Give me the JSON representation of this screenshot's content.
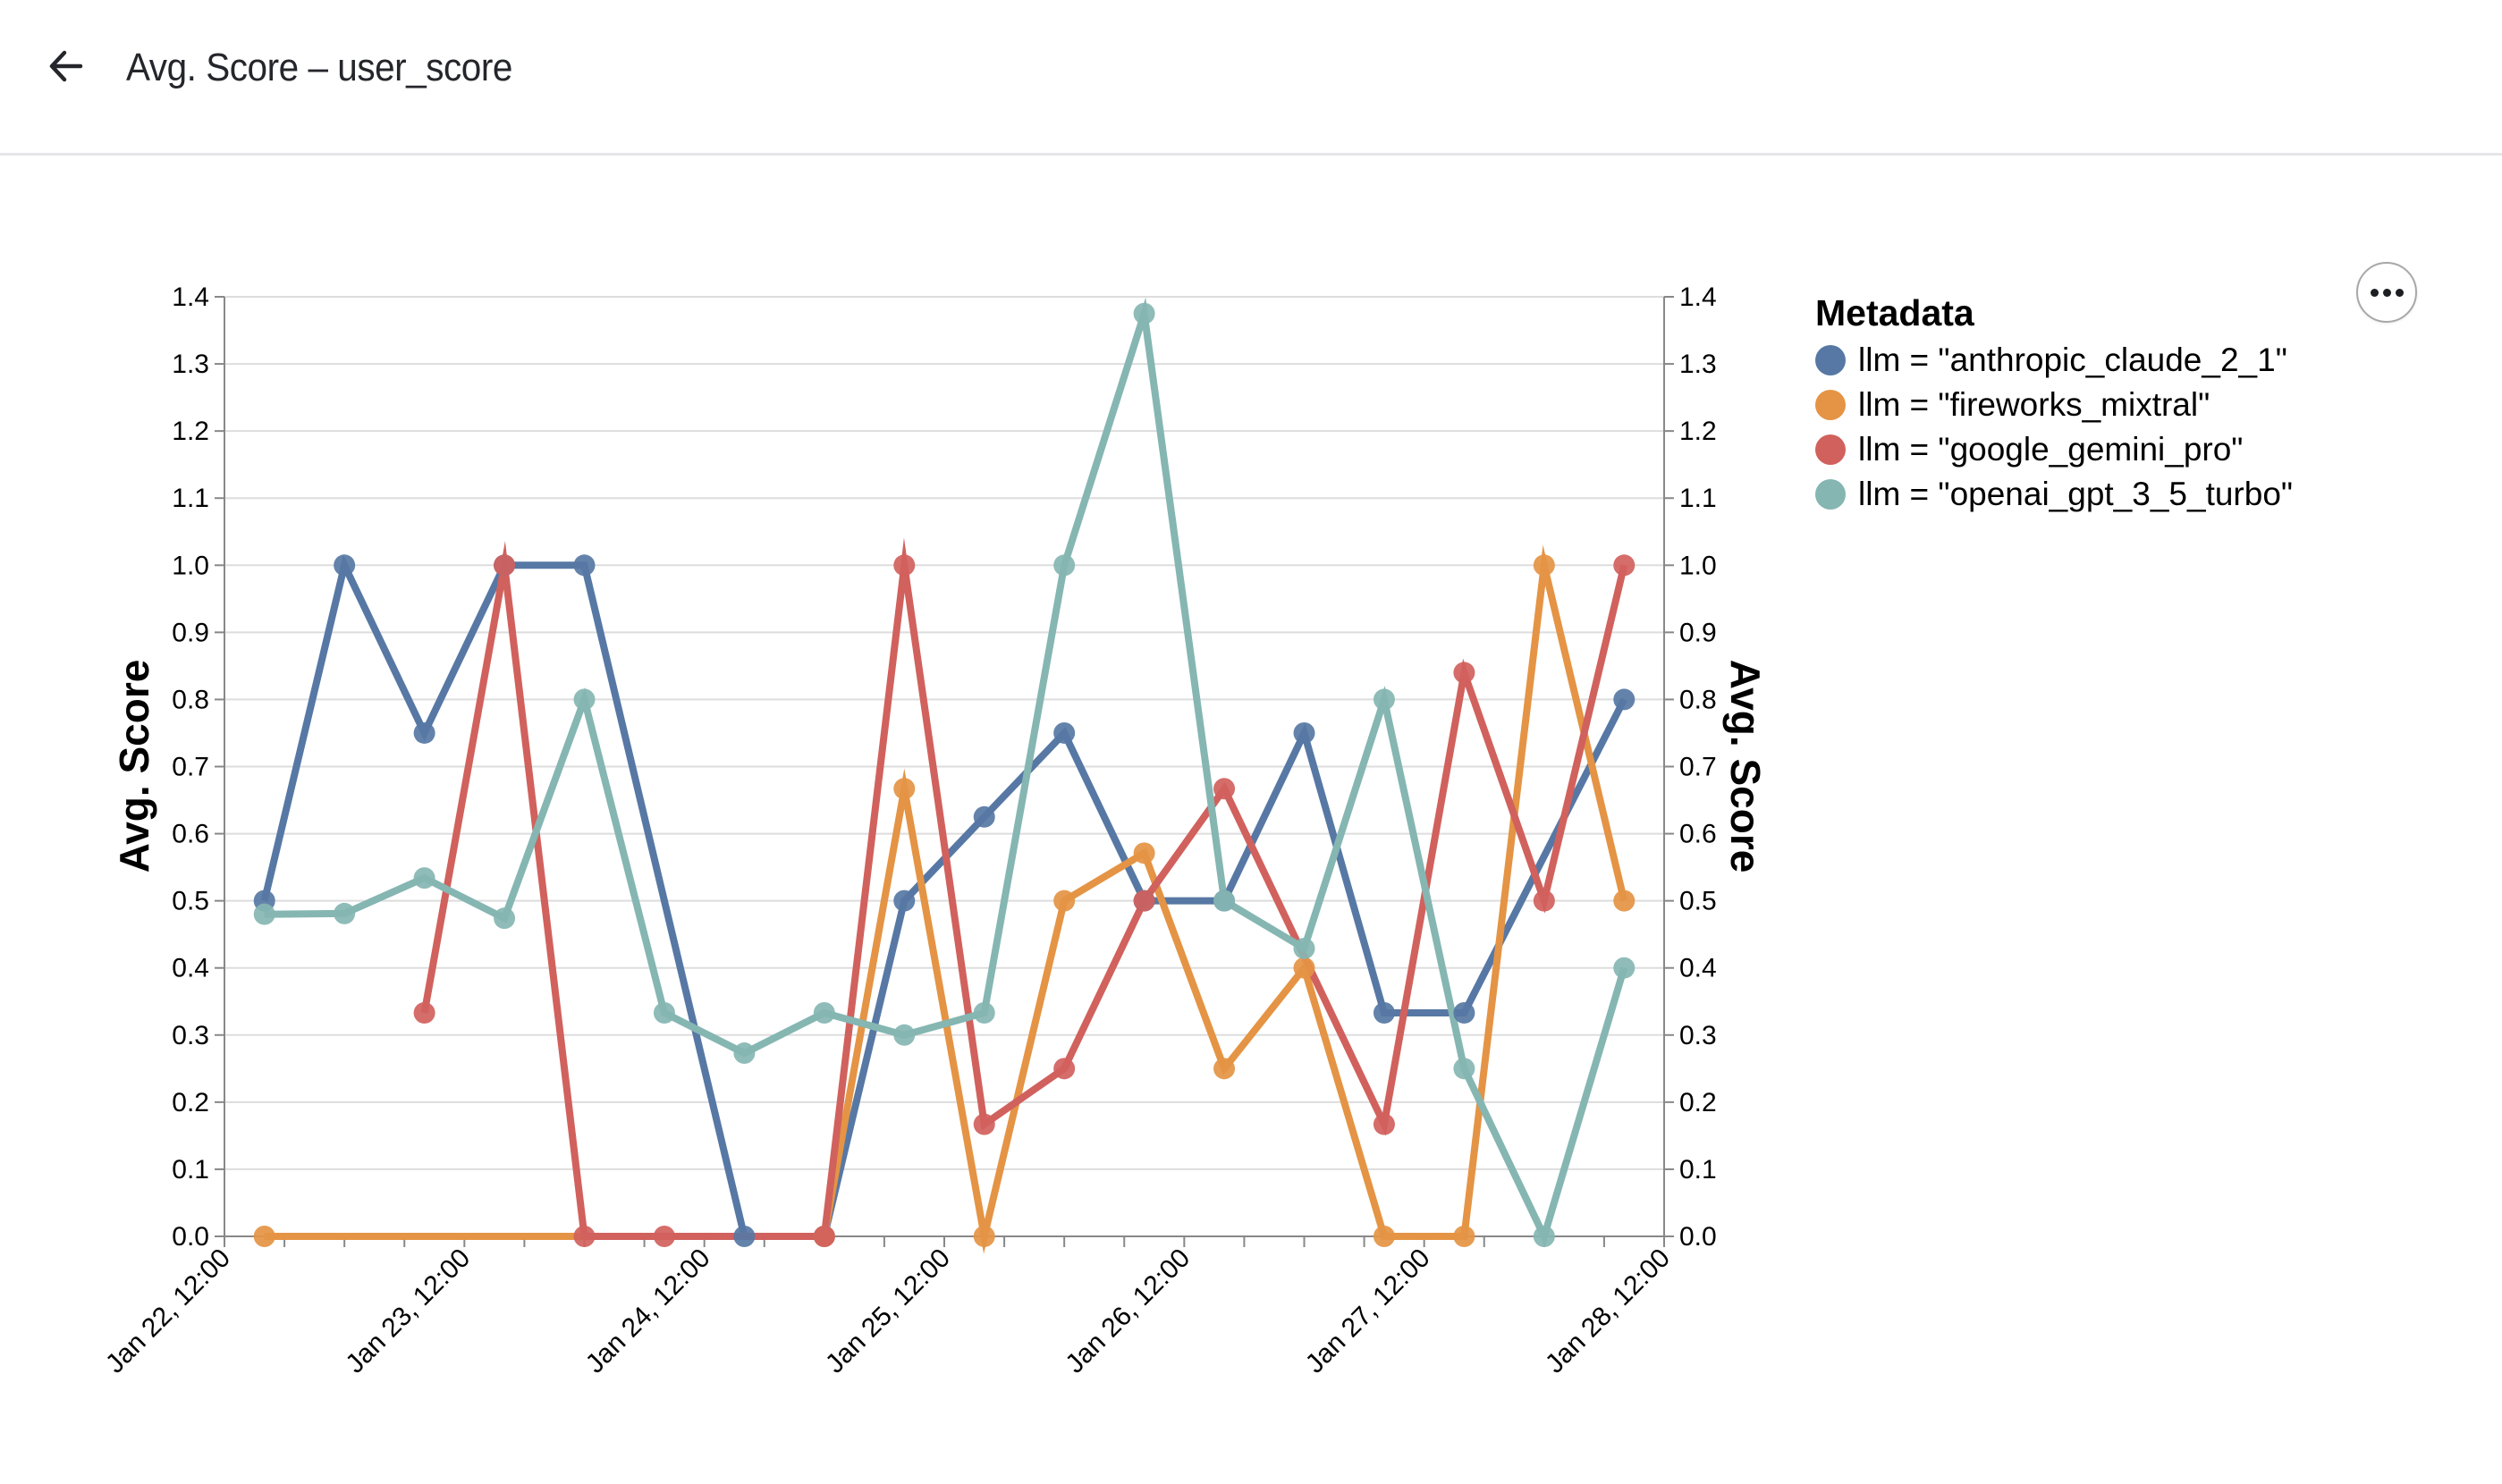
{
  "header": {
    "title": "Avg. Score – user_score",
    "back_icon": "arrow-left-icon"
  },
  "menu": {
    "icon": "more-horizontal-icon"
  },
  "legend": {
    "title": "Metadata",
    "items": [
      {
        "label": "llm = \"anthropic_claude_2_1\"",
        "color": "#5778a4"
      },
      {
        "label": "llm = \"fireworks_mixtral\"",
        "color": "#e49444"
      },
      {
        "label": "llm = \"google_gemini_pro\"",
        "color": "#d1615d"
      },
      {
        "label": "llm = \"openai_gpt_3_5_turbo\"",
        "color": "#85b6b2"
      }
    ]
  },
  "chart_data": {
    "type": "line",
    "title": "",
    "xlabel": "",
    "ylabel": "Avg. Score",
    "ylabel_right": "Avg. Score",
    "ylim": [
      0,
      1.4
    ],
    "yticks": [
      "0.0",
      "0.1",
      "0.2",
      "0.3",
      "0.4",
      "0.5",
      "0.6",
      "0.7",
      "0.8",
      "0.9",
      "1.0",
      "1.1",
      "1.2",
      "1.3",
      "1.4"
    ],
    "xlim_hours_from_jan22_12": [
      0,
      144
    ],
    "xticks": [
      "Jan 22, 12:00",
      "Jan 23, 12:00",
      "Jan 24, 12:00",
      "Jan 25, 12:00",
      "Jan 26, 12:00",
      "Jan 27, 12:00",
      "Jan 28, 12:00"
    ],
    "x": [
      "Jan 22 16:00",
      "Jan 23 00:00",
      "Jan 23 08:00",
      "Jan 23 16:00",
      "Jan 24 00:00",
      "Jan 24 08:00",
      "Jan 24 16:00",
      "Jan 25 00:00",
      "Jan 25 08:00",
      "Jan 25 16:00",
      "Jan 26 00:00",
      "Jan 26 08:00",
      "Jan 26 16:00",
      "Jan 27 00:00",
      "Jan 27 08:00",
      "Jan 27 16:00",
      "Jan 28 00:00",
      "Jan 28 08:00"
    ],
    "x_hours_from_jan22_12": [
      4,
      12,
      20,
      28,
      36,
      44,
      52,
      60,
      68,
      76,
      84,
      92,
      100,
      108,
      116,
      124,
      132,
      140
    ],
    "grid": true,
    "legend_position": "right",
    "series": [
      {
        "name": "llm = \"anthropic_claude_2_1\"",
        "color": "#5778a4",
        "values": [
          0.5,
          1.0,
          0.75,
          1.0,
          1.0,
          null,
          0,
          0,
          0.5,
          0.625,
          0.75,
          0.5,
          0.5,
          0.75,
          0.333,
          0.333,
          null,
          0.8
        ]
      },
      {
        "name": "llm = \"fireworks_mixtral\"",
        "color": "#e49444",
        "values": [
          0,
          null,
          null,
          null,
          null,
          null,
          null,
          0,
          0.667,
          0,
          0.5,
          0.571,
          0.25,
          0.4,
          0,
          0,
          1.0,
          0.5
        ]
      },
      {
        "name": "llm = \"google_gemini_pro\"",
        "color": "#d1615d",
        "values": [
          null,
          null,
          0.333,
          1.0,
          0,
          0,
          null,
          0,
          1.0,
          0.167,
          0.25,
          0.5,
          0.667,
          null,
          0.167,
          0.84,
          0.5,
          1.0
        ]
      },
      {
        "name": "llm = \"openai_gpt_3_5_turbo\"",
        "color": "#85b6b2",
        "values": [
          0.48,
          0.481,
          0.534,
          0.474,
          0.8,
          0.333,
          0.273,
          0.333,
          0.3,
          0.333,
          1.0,
          1.375,
          0.5,
          0.429,
          0.8,
          0.25,
          0,
          0.4
        ]
      }
    ]
  }
}
